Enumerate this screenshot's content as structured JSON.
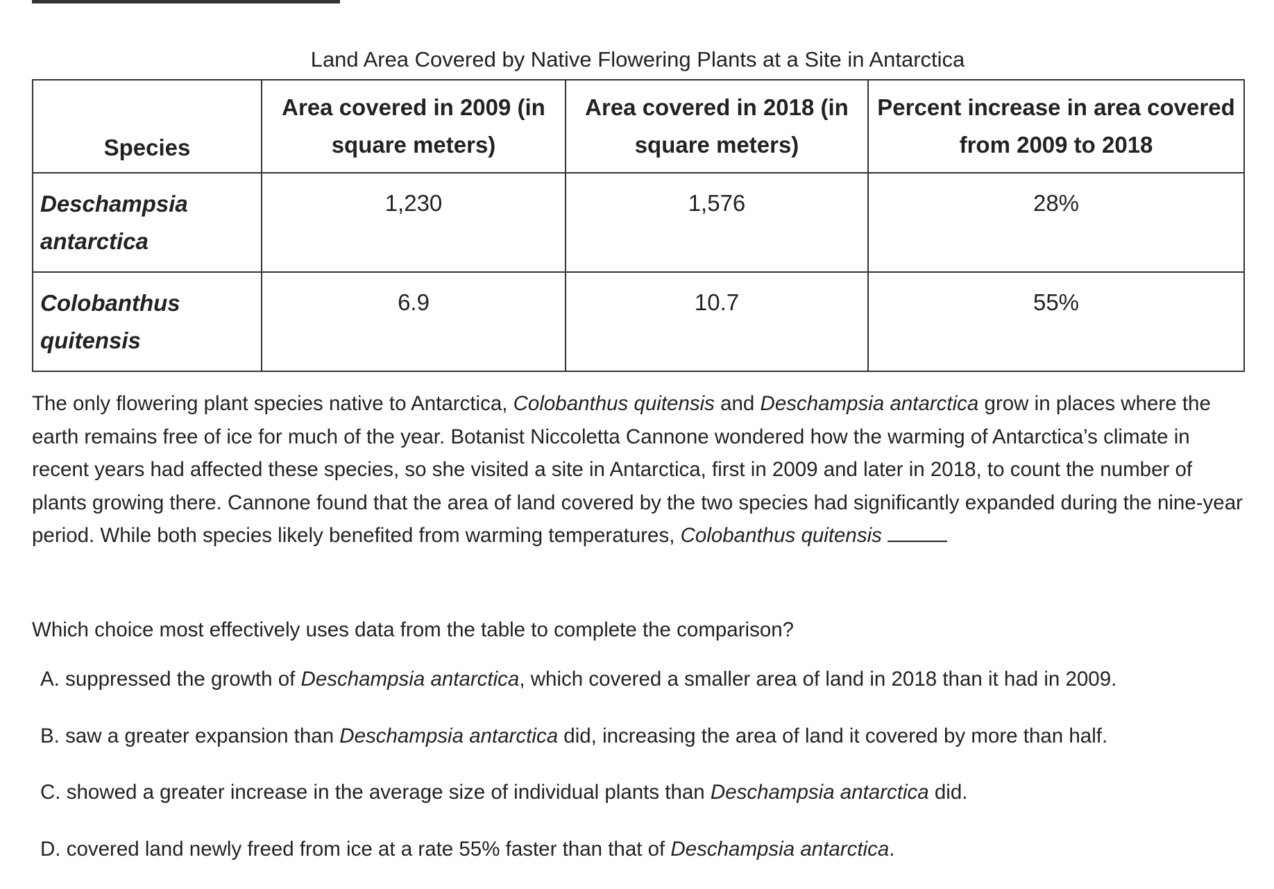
{
  "table": {
    "caption": "Land Area Covered by Native Flowering Plants at a Site in Antarctica",
    "headers": {
      "species": "Species",
      "area_2009": "Area covered in 2009 (in square meters)",
      "area_2018": "Area covered in 2018 (in square meters)",
      "percent_increase": "Percent increase in area covered from 2009 to 2018"
    },
    "rows": [
      {
        "species": "Deschampsia antarctica",
        "area_2009": "1,230",
        "area_2018": "1,576",
        "percent_increase": "28%"
      },
      {
        "species": "Colobanthus quitensis",
        "area_2009": "6.9",
        "area_2018": "10.7",
        "percent_increase": "55%"
      }
    ]
  },
  "passage": {
    "p1": "The only flowering plant species native to Antarctica, ",
    "p2": "Colobanthus quitensis",
    "p3": " and ",
    "p4": "Deschampsia antarctica",
    "p5": " grow in places where the earth remains free of ice for much of the year. Botanist Niccoletta Cannone wondered how the warming of Antarctica’s climate in recent years had affected these species, so she visited a site in Antarctica, first in 2009 and later in 2018, to count the number of plants growing there. Cannone found that the area of land covered by the two species had significantly expanded during the nine-year period. While both species likely benefited from warming temperatures, ",
    "p6": "Colobanthus quitensis"
  },
  "question": "Which choice most effectively uses data from the table to complete the comparison?",
  "choices": {
    "a": {
      "t1": "A. suppressed the growth of ",
      "t2": "Deschampsia antarctica",
      "t3": ", which covered a smaller area of land in 2018 than it had in 2009."
    },
    "b": {
      "t1": "B. saw a greater expansion than ",
      "t2": "Deschampsia antarctica",
      "t3": " did, increasing the area of land it covered by more than half."
    },
    "c": {
      "t1": "C. showed a greater increase in the average size of individual plants than ",
      "t2": "Deschampsia antarctica",
      "t3": " did."
    },
    "d": {
      "t1": "D. covered land newly freed from ice at a rate 55% faster than that of ",
      "t2": "Deschampsia antarctica",
      "t3": "."
    }
  }
}
